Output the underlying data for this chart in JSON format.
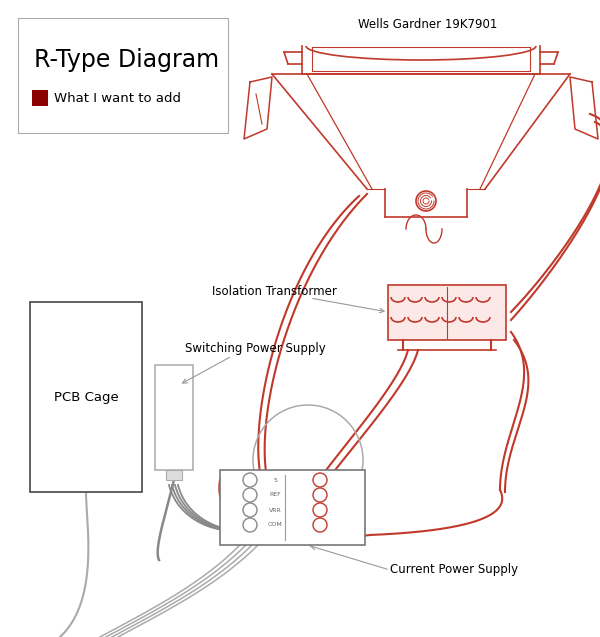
{
  "title": "R-Type Diagram",
  "legend_label": "What I want to add",
  "legend_color": "#8B0000",
  "monitor_label": "Wells Gardner 19K7901",
  "isolation_label": "Isolation Transformer",
  "switching_label": "Switching Power Supply",
  "pcb_label": "PCB Cage",
  "current_ps_label": "Current Power Supply",
  "bg_color": "#ffffff",
  "line_color_red": "#c0392b",
  "line_color_dark": "#555555",
  "line_color_gray": "#999999",
  "fig_w": 6.0,
  "fig_h": 6.37,
  "dpi": 100
}
